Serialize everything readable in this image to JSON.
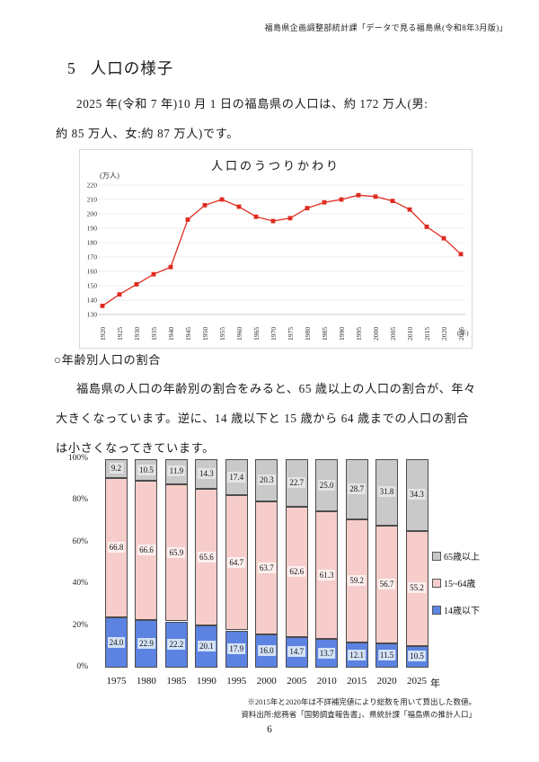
{
  "page": {
    "header": "福島県企画調整部統計課「データで見る福島県(令和8年3月版)」",
    "title_number": "5",
    "title_text": "人口の様子",
    "intro_lines": [
      "2025 年(令和 7 年)10 月 1 日の福島県の人口は、約 172 万人(男:",
      "約 85 万人、女:約 87 万人)です。"
    ],
    "section_heading": "○年齢別人口の割合",
    "section_lines": [
      "福島県の人口の年齢別の割合をみると、65 歳以上の人口の割合が、年々",
      "大きくなっています。逆に、14 歳以下と 15 歳から 64 歳までの人口の割合",
      "は小さくなってきています。"
    ],
    "note1": "※2015年と2020年は不詳補完値により総数を用いて算出した数値。",
    "note2": "資料出所:総務省「国勢調査報告書」、県統計課「福島県の推計人口」",
    "page_number": "6"
  },
  "chart_data": [
    {
      "type": "line",
      "title": "人口のうつりかわり",
      "unit_label": "(万人)",
      "x_unit_label": "(年)",
      "x": [
        "1920",
        "1925",
        "1930",
        "1935",
        "1940",
        "1945",
        "1950",
        "1955",
        "1960",
        "1965",
        "1970",
        "1975",
        "1980",
        "1985",
        "1990",
        "1995",
        "2000",
        "2005",
        "2010",
        "2015",
        "2020",
        "2025"
      ],
      "values": [
        136,
        144,
        151,
        158,
        163,
        196,
        206,
        210,
        205,
        198,
        195,
        197,
        204,
        208,
        210,
        213,
        212,
        209,
        203,
        191,
        183,
        172
      ],
      "ylim": [
        130,
        220
      ],
      "ytick_step": 10,
      "grid": true,
      "legend_position": "none",
      "line_color": "#e02b20",
      "marker": "square"
    },
    {
      "type": "bar",
      "subtype": "stacked-percent",
      "categories": [
        "1975",
        "1980",
        "1985",
        "1990",
        "1995",
        "2000",
        "2005",
        "2010",
        "2015",
        "2020",
        "2025"
      ],
      "x_axis_suffix": "年",
      "ylim": [
        0,
        100
      ],
      "yticks": [
        "0%",
        "20%",
        "40%",
        "60%",
        "80%",
        "100%"
      ],
      "grid": false,
      "legend_position": "right",
      "series": [
        {
          "name": "14歳以下",
          "color": "#5c82e2",
          "label_bg": "#d4e2f6",
          "values": [
            24.0,
            22.9,
            22.2,
            20.1,
            17.9,
            16.0,
            14.7,
            13.7,
            12.1,
            11.5,
            10.5
          ]
        },
        {
          "name": "15~64歳",
          "color": "#f6cdca",
          "label_bg": "#fdf0ef",
          "values": [
            66.8,
            66.6,
            65.9,
            65.6,
            64.7,
            63.7,
            62.6,
            61.3,
            59.2,
            56.7,
            55.2
          ]
        },
        {
          "name": "65歳以上",
          "color": "#c9c9c9",
          "label_bg": "#e4e4e4",
          "values": [
            9.2,
            10.5,
            11.9,
            14.3,
            17.4,
            20.3,
            22.7,
            25.0,
            28.7,
            31.8,
            34.3
          ]
        }
      ],
      "legend": [
        {
          "label": "65歳以上",
          "color": "#c9c9c9"
        },
        {
          "label": "15~64歳",
          "color": "#f6cdca"
        },
        {
          "label": "14歳以下",
          "color": "#5c82e2"
        }
      ]
    }
  ]
}
